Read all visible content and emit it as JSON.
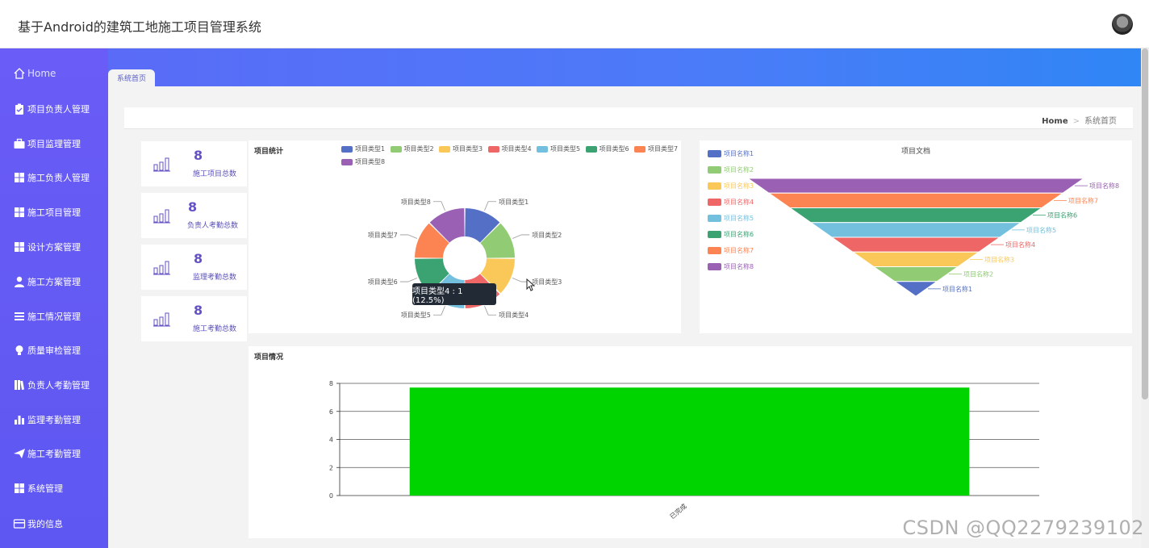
{
  "app_title": "基于Android的建筑工地施工项目管理系统",
  "sidebar": {
    "items": [
      {
        "label": "Home",
        "icon": "home-icon"
      },
      {
        "label": "项目负责人管理",
        "icon": "clipboard-icon"
      },
      {
        "label": "项目监理管理",
        "icon": "briefcase-icon"
      },
      {
        "label": "施工负责人管理",
        "icon": "grid-icon"
      },
      {
        "label": "施工项目管理",
        "icon": "grid-icon"
      },
      {
        "label": "设计方案管理",
        "icon": "grid-icon"
      },
      {
        "label": "施工方案管理",
        "icon": "user-icon"
      },
      {
        "label": "施工情况管理",
        "icon": "list-icon"
      },
      {
        "label": "质量审检管理",
        "icon": "bulb-icon"
      },
      {
        "label": "负责人考勤管理",
        "icon": "book-icon"
      },
      {
        "label": "监理考勤管理",
        "icon": "bar-chart-icon"
      },
      {
        "label": "施工考勤管理",
        "icon": "send-icon"
      },
      {
        "label": "系统管理",
        "icon": "grid-icon"
      },
      {
        "label": "我的信息",
        "icon": "card-icon"
      }
    ]
  },
  "tab": {
    "label": "系统首页"
  },
  "breadcrumb": {
    "home": "Home",
    "sep": ">",
    "current": "系统首页"
  },
  "stats": [
    {
      "value": "8",
      "label": "施工项目总数"
    },
    {
      "value": "8",
      "label": "负责人考勤总数"
    },
    {
      "value": "8",
      "label": "监理考勤总数"
    },
    {
      "value": "8",
      "label": "施工考勤总数"
    }
  ],
  "colors": {
    "accent": "#6a5cf6",
    "series": [
      "#5470c6",
      "#91cc75",
      "#fac858",
      "#ee6666",
      "#73c0de",
      "#3ba272",
      "#fc8452",
      "#9a60b4"
    ],
    "bar": "#00d400"
  },
  "chart_data": [
    {
      "type": "pie",
      "title": "项目统计",
      "donut": true,
      "categories": [
        "项目类型1",
        "项目类型2",
        "项目类型3",
        "项目类型4",
        "项目类型5",
        "项目类型6",
        "项目类型7",
        "项目类型8"
      ],
      "values": [
        1,
        1,
        1,
        1,
        1,
        1,
        1,
        1
      ],
      "legend": "top",
      "tooltip": "项目类型4 : 1 (12.5%)"
    },
    {
      "type": "funnel",
      "title": "项目文档",
      "categories": [
        "项目名称1",
        "项目名称2",
        "项目名称3",
        "项目名称4",
        "项目名称5",
        "项目名称6",
        "项目名称7",
        "项目名称8"
      ],
      "values": [
        1,
        2,
        3,
        4,
        5,
        6,
        7,
        8
      ],
      "legend": "left"
    },
    {
      "type": "bar",
      "title": "项目情况",
      "categories": [
        "已完成"
      ],
      "values": [
        7.7
      ],
      "ylim": [
        0,
        8
      ],
      "yticks": [
        0,
        2,
        4,
        6,
        8
      ],
      "grid": true
    }
  ],
  "watermark": "CSDN @QQ2279239102"
}
